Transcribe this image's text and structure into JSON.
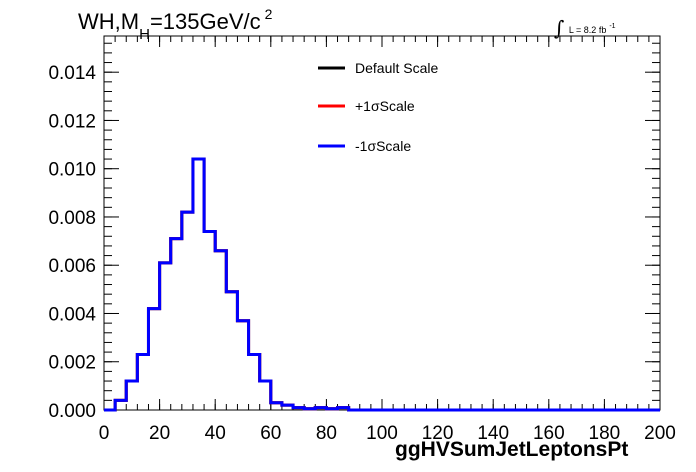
{
  "title": {
    "text_main": "WH,M",
    "text_sub": "H",
    "text_rest": "=135GeV/c",
    "text_sup": "2"
  },
  "lumi": {
    "integral": "∫",
    "text": "L = 8.2 fb",
    "sup": "-1"
  },
  "legend": [
    {
      "label": "Default Scale",
      "color": "#000000"
    },
    {
      "label": "+1σScale",
      "color": "#ff0000"
    },
    {
      "label": "-1σScale",
      "color": "#0000ff"
    }
  ],
  "chart_data": {
    "type": "line",
    "step": true,
    "xlabel": "ggHVSumJetLeptonsPt",
    "ylabel": "",
    "xlim": [
      0,
      200
    ],
    "ylim": [
      0,
      0.0155
    ],
    "xticks": [
      0,
      20,
      40,
      60,
      80,
      100,
      120,
      140,
      160,
      180,
      200
    ],
    "xtick_labels": [
      "0",
      "20",
      "40",
      "60",
      "80",
      "100",
      "120",
      "140",
      "160",
      "180",
      "200"
    ],
    "yticks": [
      0,
      0.002,
      0.004,
      0.006,
      0.008,
      0.01,
      0.012,
      0.014
    ],
    "ytick_labels": [
      "0.000",
      "0.002",
      "0.004",
      "0.006",
      "0.008",
      "0.010",
      "0.012",
      "0.014"
    ],
    "bin_edges": [
      0,
      4,
      8,
      12,
      16,
      20,
      24,
      28,
      32,
      36,
      40,
      44,
      48,
      52,
      56,
      60,
      64,
      68,
      72,
      76,
      80,
      84,
      88,
      92,
      96,
      100,
      104,
      108,
      112,
      116,
      120,
      124,
      128,
      132,
      136,
      140,
      144,
      148,
      152,
      156,
      160,
      164,
      168,
      172,
      176,
      180,
      184,
      188,
      192,
      196,
      200
    ],
    "series": [
      {
        "name": "Default Scale",
        "color": "#000000",
        "values": [
          0.0,
          0.0004,
          0.0012,
          0.0023,
          0.0042,
          0.0061,
          0.0071,
          0.0082,
          0.0104,
          0.0074,
          0.0066,
          0.0049,
          0.0037,
          0.0023,
          0.0012,
          0.0003,
          0.0002,
          0.0001,
          5e-05,
          0.0001,
          5e-05,
          0.0001,
          0,
          0,
          0,
          0,
          0,
          0,
          0,
          0,
          0,
          0,
          0,
          0,
          0,
          0,
          0,
          0,
          0,
          0,
          0,
          0,
          0,
          0,
          0,
          0,
          0,
          0,
          0,
          0
        ]
      },
      {
        "name": "+1σScale",
        "color": "#ff0000",
        "values": [
          0.0,
          0.0004,
          0.0012,
          0.0023,
          0.0042,
          0.0061,
          0.0071,
          0.0082,
          0.0104,
          0.0074,
          0.0066,
          0.0049,
          0.0037,
          0.0023,
          0.0012,
          0.0003,
          0.0002,
          0.0001,
          5e-05,
          0.0001,
          5e-05,
          0.0001,
          0,
          0,
          0,
          0,
          0,
          0,
          0,
          0,
          0,
          0,
          0,
          0,
          0,
          0,
          0,
          0,
          0,
          0,
          0,
          0,
          0,
          0,
          0,
          0,
          0,
          0,
          0,
          0
        ]
      },
      {
        "name": "-1σScale",
        "color": "#0000ff",
        "values": [
          0.0,
          0.0004,
          0.0012,
          0.0023,
          0.0042,
          0.0061,
          0.0071,
          0.0082,
          0.0104,
          0.0074,
          0.0066,
          0.0049,
          0.0037,
          0.0023,
          0.0012,
          0.0003,
          0.0002,
          0.0001,
          5e-05,
          0.0001,
          5e-05,
          0.0001,
          0,
          0,
          0,
          0,
          0,
          0,
          0,
          0,
          0,
          0,
          0,
          0,
          0,
          0,
          0,
          0,
          0,
          0,
          0,
          0,
          0,
          0,
          0,
          0,
          0,
          0,
          0,
          0
        ]
      }
    ]
  }
}
